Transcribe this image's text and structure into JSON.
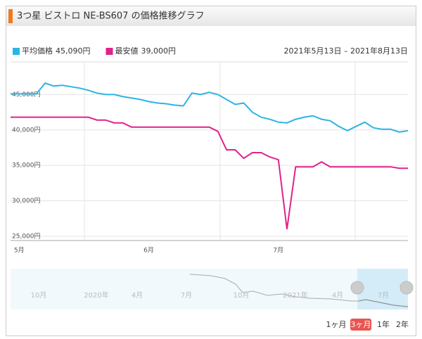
{
  "chart_data": {
    "type": "line",
    "title": "3つ星 ビストロ NE-BS607 の価格推移グラフ",
    "range": "2021年5月13日 – 2021年8月13日",
    "categories": [
      null,
      "5月",
      null,
      null,
      null,
      null,
      null,
      null,
      null,
      null,
      null,
      null,
      null,
      null,
      null,
      null,
      "6月",
      null,
      null,
      null,
      null,
      null,
      null,
      null,
      null,
      null,
      null,
      null,
      null,
      null,
      null,
      "7月",
      null,
      null,
      null,
      null,
      null,
      null,
      null,
      null,
      null,
      null,
      null,
      null,
      null,
      null,
      null
    ],
    "series": [
      {
        "name": "平均価格",
        "summary": "45,090円",
        "color": "#2bb5e3",
        "values": [
          45100,
          45100,
          45100,
          45100,
          46600,
          46200,
          46300,
          46100,
          45900,
          45600,
          45200,
          45000,
          45000,
          44700,
          44500,
          44300,
          44000,
          43800,
          43700,
          43500,
          43400,
          45200,
          45000,
          45300,
          45000,
          44300,
          43600,
          43800,
          42500,
          41800,
          41500,
          41100,
          41000,
          41500,
          41800,
          42000,
          41500,
          41300,
          40500,
          39900,
          40500,
          41100,
          40300,
          40100,
          40100,
          39700,
          39900
        ]
      },
      {
        "name": "最安値",
        "summary": "39,000円",
        "color": "#e0228b",
        "values": [
          41800,
          41800,
          41800,
          41800,
          41800,
          41800,
          41800,
          41800,
          41800,
          41800,
          41400,
          41400,
          41000,
          41000,
          40400,
          40400,
          40400,
          40400,
          40400,
          40400,
          40400,
          40400,
          40400,
          40400,
          39800,
          37200,
          37200,
          36000,
          36800,
          36800,
          36200,
          35800,
          26000,
          34800,
          34800,
          34800,
          35500,
          34800,
          34800,
          34800,
          34800,
          34800,
          34800,
          34800,
          34800,
          34600,
          34600
        ]
      }
    ],
    "ylim": [
      24400,
      49600
    ],
    "yticks": [
      {
        "value": 25000,
        "label": "25,000円"
      },
      {
        "value": 30000,
        "label": "30,000円"
      },
      {
        "value": 35000,
        "label": "35,000円"
      },
      {
        "value": 40000,
        "label": "40,000円"
      },
      {
        "value": 45000,
        "label": "45,000円"
      }
    ],
    "grid": true
  },
  "navigator": {
    "labels": [
      "10月",
      "2020年",
      "4月",
      "7月",
      "10月",
      "2021年",
      "4月",
      "7月"
    ]
  },
  "buttons": {
    "items": [
      "1ヶ月",
      "3ヶ月",
      "1年",
      "2年"
    ],
    "active": 1
  }
}
